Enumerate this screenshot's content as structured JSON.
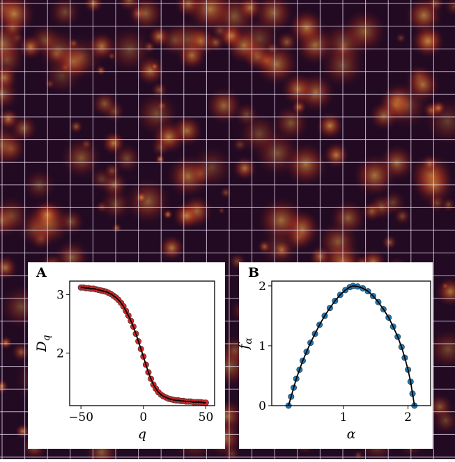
{
  "chart_data": [
    {
      "type": "scatter",
      "panel": "A",
      "xlabel": "q",
      "ylabel": "D",
      "ylabel_sub": "q",
      "x": [
        -50,
        -48,
        -46,
        -44,
        -42,
        -40,
        -38,
        -36,
        -34,
        -32,
        -30,
        -28,
        -26,
        -24,
        -22,
        -20,
        -18,
        -16,
        -14,
        -12,
        -10,
        -8,
        -6,
        -4,
        -2,
        0,
        2,
        4,
        6,
        8,
        10,
        12,
        14,
        16,
        18,
        20,
        22,
        24,
        26,
        28,
        30,
        32,
        34,
        36,
        38,
        40,
        42,
        44,
        46,
        48,
        50
      ],
      "series": [
        {
          "color": "#d62728",
          "values": [
            3.12,
            3.12,
            3.11,
            3.11,
            3.1,
            3.1,
            3.09,
            3.08,
            3.07,
            3.06,
            3.05,
            3.03,
            3.01,
            2.98,
            2.95,
            2.91,
            2.86,
            2.8,
            2.72,
            2.64,
            2.55,
            2.45,
            2.33,
            2.2,
            2.07,
            1.94,
            1.8,
            1.67,
            1.56,
            1.46,
            1.39,
            1.33,
            1.29,
            1.26,
            1.24,
            1.22,
            1.21,
            1.2,
            1.19,
            1.19,
            1.18,
            1.18,
            1.17,
            1.17,
            1.17,
            1.16,
            1.16,
            1.16,
            1.16,
            1.15,
            1.15
          ]
        }
      ],
      "line_color": "#000000",
      "xlim": [
        -59,
        57
      ],
      "ylim": [
        1.1,
        3.23
      ],
      "xticks": [
        {
          "value": -50,
          "label": "−50"
        },
        0,
        50
      ],
      "yticks": [
        2,
        3
      ]
    },
    {
      "type": "scatter",
      "panel": "B",
      "xlabel": "α",
      "ylabel": "f",
      "ylabel_sub": "α",
      "x": [
        0.15,
        0.19,
        0.23,
        0.27,
        0.32,
        0.37,
        0.43,
        0.49,
        0.56,
        0.63,
        0.71,
        0.79,
        0.87,
        0.95,
        1.03,
        1.1,
        1.15,
        1.22,
        1.3,
        1.38,
        1.46,
        1.54,
        1.62,
        1.7,
        1.77,
        1.84,
        1.9,
        1.95,
        2.0,
        2.04,
        2.07,
        2.1
      ],
      "series": [
        {
          "color": "#1f77b4",
          "values": [
            0,
            0.15,
            0.3,
            0.45,
            0.6,
            0.75,
            0.9,
            1.05,
            1.2,
            1.35,
            1.5,
            1.63,
            1.75,
            1.85,
            1.93,
            1.98,
            2.0,
            1.99,
            1.96,
            1.91,
            1.83,
            1.73,
            1.61,
            1.47,
            1.32,
            1.15,
            0.98,
            0.8,
            0.6,
            0.4,
            0.2,
            0
          ]
        }
      ],
      "line_color": "#000000",
      "xlim": [
        -0.11,
        2.35
      ],
      "ylim": [
        0,
        2.08
      ],
      "xticks": [
        1,
        2
      ],
      "yticks": [
        0,
        1,
        2
      ]
    }
  ]
}
